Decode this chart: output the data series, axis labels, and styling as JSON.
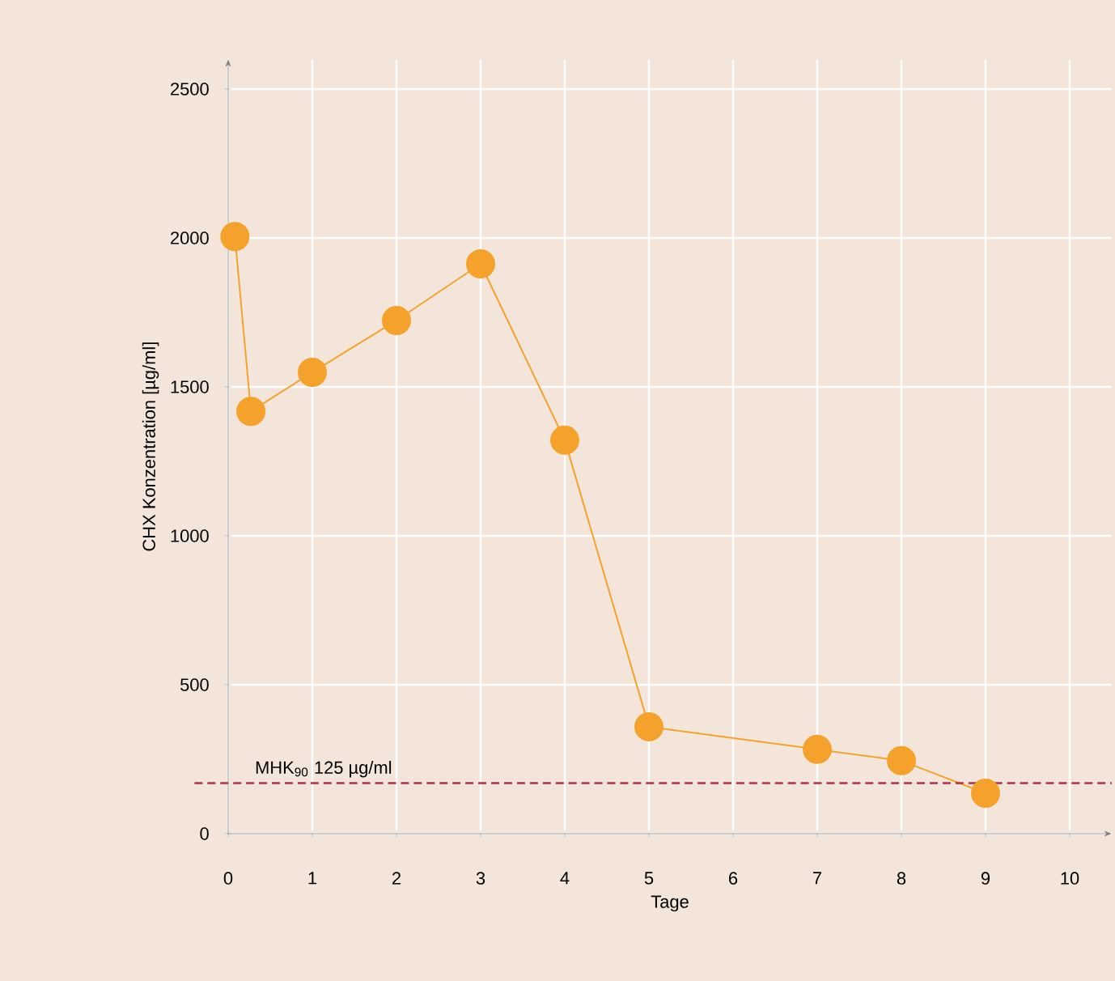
{
  "chart_data": {
    "type": "line",
    "xlabel": "Tage",
    "ylabel": "CHX Konzentration [µg/ml]",
    "x": [
      0.08,
      0.27,
      1,
      2,
      3,
      4,
      5,
      7,
      8,
      9
    ],
    "series": [
      {
        "color": "#f5a22d",
        "values": [
          2005,
          1418,
          1549,
          1723,
          1913,
          1321,
          359,
          283,
          245,
          136
        ]
      }
    ],
    "xlim": [
      0,
      10.5
    ],
    "ylim": [
      0,
      2600
    ],
    "xticks": [
      0,
      1,
      2,
      3,
      4,
      5,
      6,
      7,
      8,
      9,
      10
    ],
    "yticks": [
      0,
      500,
      1000,
      1500,
      2000,
      2500
    ],
    "grid": true,
    "marker": "circle",
    "line_style": "solid",
    "ref_lines": [
      {
        "axis": "y",
        "value": 170,
        "label": "MHK$_{90}$ 125 µg/ml",
        "color": "#b0304a",
        "line_style": "dashed"
      }
    ]
  }
}
